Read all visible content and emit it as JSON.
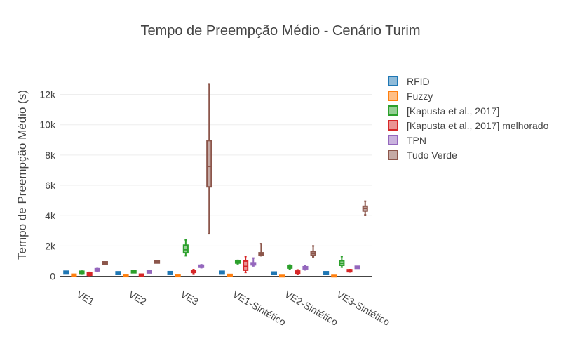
{
  "chart_data": {
    "type": "box",
    "title": "Tempo de Preempção Médio - Cenário Turim",
    "xlabel": "",
    "ylabel": "Tempo de Preempção Médio (s)",
    "ylim": [
      -300,
      13600
    ],
    "y_ticks": [
      0,
      2000,
      4000,
      6000,
      8000,
      10000,
      12000
    ],
    "y_tick_labels": [
      "0",
      "2k",
      "4k",
      "6k",
      "8k",
      "10k",
      "12k"
    ],
    "grid": true,
    "legend_position": "right",
    "categories": [
      "VE1",
      "VE2",
      "VE3",
      "VE1-Sintético",
      "VE2-Sintético",
      "VE3-Sintético"
    ],
    "series": [
      {
        "name": "RFID",
        "color": "#1f77b4",
        "boxes": [
          {
            "min": 240,
            "q1": 255,
            "median": 265,
            "q3": 275,
            "max": 290
          },
          {
            "min": 205,
            "q1": 215,
            "median": 225,
            "q3": 235,
            "max": 245
          },
          {
            "min": 215,
            "q1": 225,
            "median": 235,
            "q3": 245,
            "max": 255
          },
          {
            "min": 240,
            "q1": 250,
            "median": 260,
            "q3": 270,
            "max": 280
          },
          {
            "min": 190,
            "q1": 200,
            "median": 210,
            "q3": 220,
            "max": 230
          },
          {
            "min": 210,
            "q1": 220,
            "median": 230,
            "q3": 240,
            "max": 250
          }
        ]
      },
      {
        "name": "Fuzzy",
        "color": "#ff7f0e",
        "boxes": [
          {
            "min": 40,
            "q1": 55,
            "median": 65,
            "q3": 75,
            "max": 90
          },
          {
            "min": 20,
            "q1": 35,
            "median": 45,
            "q3": 55,
            "max": 70
          },
          {
            "min": 20,
            "q1": 35,
            "median": 45,
            "q3": 55,
            "max": 70
          },
          {
            "min": 30,
            "q1": 45,
            "median": 55,
            "q3": 65,
            "max": 80
          },
          {
            "min": 10,
            "q1": 25,
            "median": 35,
            "q3": 45,
            "max": 60
          },
          {
            "min": 10,
            "q1": 25,
            "median": 35,
            "q3": 45,
            "max": 60
          }
        ]
      },
      {
        "name": "[Kapusta et al., 2017]",
        "color": "#2ca02c",
        "boxes": [
          {
            "min": 180,
            "q1": 230,
            "median": 260,
            "q3": 290,
            "max": 340
          },
          {
            "min": 270,
            "q1": 285,
            "median": 295,
            "q3": 305,
            "max": 320
          },
          {
            "min": 1350,
            "q1": 1550,
            "median": 1750,
            "q3": 2050,
            "max": 2400
          },
          {
            "min": 820,
            "q1": 900,
            "median": 940,
            "q3": 980,
            "max": 1050
          },
          {
            "min": 480,
            "q1": 560,
            "median": 610,
            "q3": 660,
            "max": 740
          },
          {
            "min": 600,
            "q1": 720,
            "median": 860,
            "q3": 1020,
            "max": 1300
          }
        ]
      },
      {
        "name": "[Kapusta et al., 2017] melhorado",
        "color": "#d62728",
        "boxes": [
          {
            "min": 40,
            "q1": 90,
            "median": 130,
            "q3": 190,
            "max": 260
          },
          {
            "min": 40,
            "q1": 55,
            "median": 70,
            "q3": 85,
            "max": 100
          },
          {
            "min": 180,
            "q1": 260,
            "median": 320,
            "q3": 380,
            "max": 440
          },
          {
            "min": 250,
            "q1": 400,
            "median": 650,
            "q3": 1000,
            "max": 1300
          },
          {
            "min": 120,
            "q1": 210,
            "median": 280,
            "q3": 340,
            "max": 420
          },
          {
            "min": 280,
            "q1": 330,
            "median": 360,
            "q3": 400,
            "max": 440
          }
        ]
      },
      {
        "name": "TPN",
        "color": "#9467bd",
        "boxes": [
          {
            "min": 330,
            "q1": 390,
            "median": 420,
            "q3": 460,
            "max": 510
          },
          {
            "min": 240,
            "q1": 270,
            "median": 285,
            "q3": 300,
            "max": 320
          },
          {
            "min": 560,
            "q1": 620,
            "median": 660,
            "q3": 700,
            "max": 760
          },
          {
            "min": 680,
            "q1": 760,
            "median": 820,
            "q3": 880,
            "max": 1200
          },
          {
            "min": 420,
            "q1": 500,
            "median": 560,
            "q3": 620,
            "max": 700
          },
          {
            "min": 540,
            "q1": 570,
            "median": 590,
            "q3": 610,
            "max": 640
          }
        ]
      },
      {
        "name": "Tudo Verde",
        "color": "#8c564b",
        "boxes": [
          {
            "min": 840,
            "q1": 860,
            "median": 880,
            "q3": 900,
            "max": 920
          },
          {
            "min": 920,
            "q1": 930,
            "median": 940,
            "q3": 950,
            "max": 960
          },
          {
            "min": 2800,
            "q1": 5900,
            "median": 7250,
            "q3": 8950,
            "max": 12700
          },
          {
            "min": 1350,
            "q1": 1420,
            "median": 1480,
            "q3": 1540,
            "max": 2150
          },
          {
            "min": 1280,
            "q1": 1380,
            "median": 1500,
            "q3": 1620,
            "max": 2000
          },
          {
            "min": 4050,
            "q1": 4300,
            "median": 4480,
            "q3": 4620,
            "max": 4950
          }
        ]
      }
    ]
  }
}
